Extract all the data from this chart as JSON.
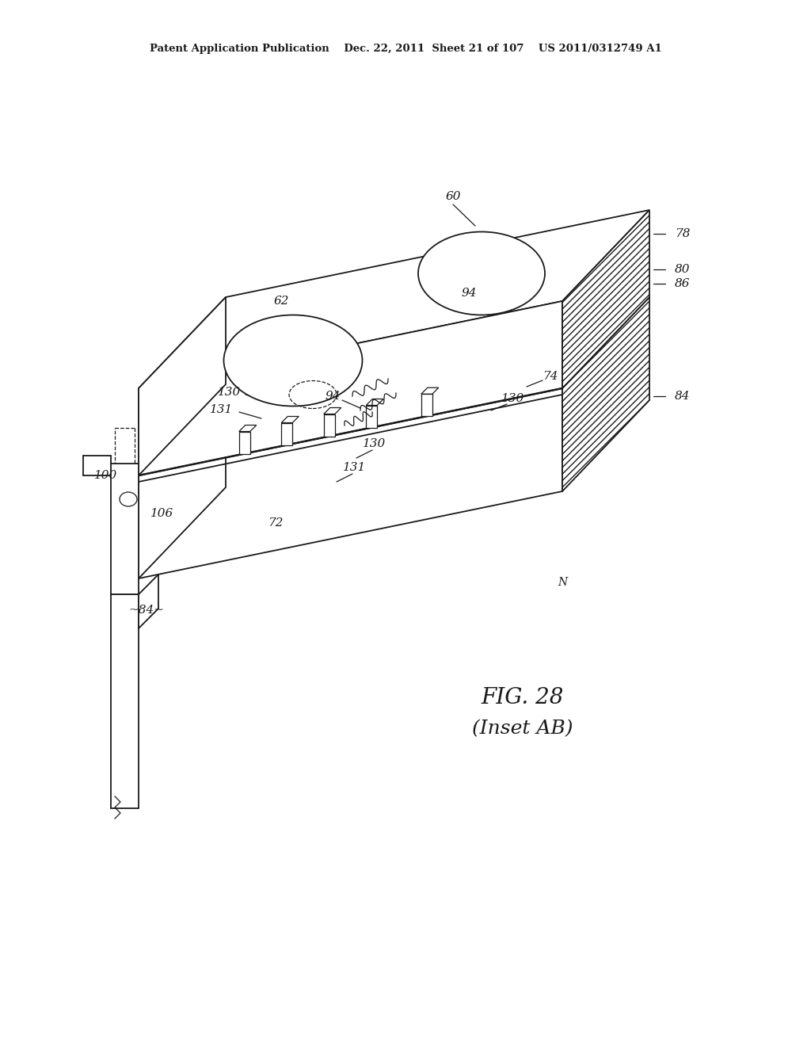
{
  "bg_color": "#ffffff",
  "line_color": "#1a1a1a",
  "header_text": "Patent Application Publication    Dec. 22, 2011  Sheet 21 of 107    US 2011/0312749 A1",
  "fig_label": "FIG. 28",
  "fig_sublabel": "(Inset AB)"
}
